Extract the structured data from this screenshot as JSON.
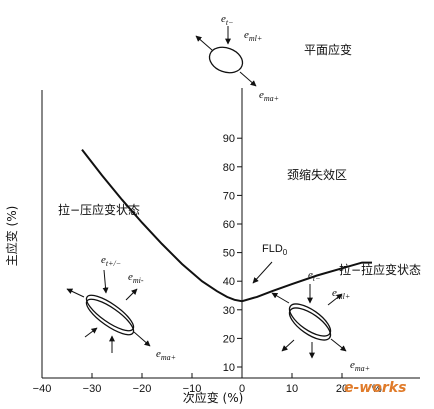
{
  "chart_data": {
    "type": "line",
    "title": "",
    "xlabel": "次应变 (%)",
    "ylabel": "主应变 (%)",
    "xlim": [
      -45,
      27
    ],
    "ylim": [
      8,
      96
    ],
    "x_ticks": [
      -40,
      -30,
      -20,
      -10,
      0,
      10,
      20
    ],
    "y_ticks": [
      10,
      20,
      30,
      40,
      50,
      60,
      70,
      80,
      90
    ],
    "x_tick_labels": [
      "−40",
      "−30",
      "−20",
      "−10",
      "0",
      "10",
      "20"
    ],
    "y_tick_labels": [
      "10",
      "20",
      "30",
      "40",
      "50",
      "60",
      "70",
      "80",
      "90"
    ],
    "grid": false,
    "series": [
      {
        "x": [
          -32,
          -28,
          -24,
          -20,
          -16,
          -12,
          -8,
          -5,
          -3,
          -1.5,
          0,
          3,
          6,
          10,
          15,
          20,
          24,
          26
        ],
        "y": [
          86,
          77,
          68.5,
          60.5,
          53,
          46,
          40,
          36.5,
          34.5,
          33.5,
          33,
          34.5,
          36.5,
          39,
          42,
          44.5,
          46.5,
          46.5
        ]
      }
    ],
    "annotations": {
      "fld": "FLD",
      "fld_sub": "0",
      "neck_zone": "颈缩失效区",
      "tension_compression": "拉−压应变状态",
      "tension_tension": "拉−拉应变状态",
      "plane_strain": "平面应变"
    },
    "strain_labels": {
      "top": [
        {
          "base": "e",
          "sub": "t−"
        },
        {
          "base": "e",
          "sub": "ml+"
        },
        {
          "base": "e",
          "sub": "ma+"
        }
      ],
      "left": [
        {
          "base": "e",
          "sub": "t+/−"
        },
        {
          "base": "e",
          "sub": "mi-"
        },
        {
          "base": "e",
          "sub": "ma+"
        }
      ],
      "right": [
        {
          "base": "e",
          "sub": "t−"
        },
        {
          "base": "e",
          "sub": "ml+"
        },
        {
          "base": "e",
          "sub": "ma+"
        }
      ]
    },
    "xaxis_end_label": "%"
  },
  "watermark": {
    "brand": "e-works",
    "color": "#e07b2a"
  }
}
